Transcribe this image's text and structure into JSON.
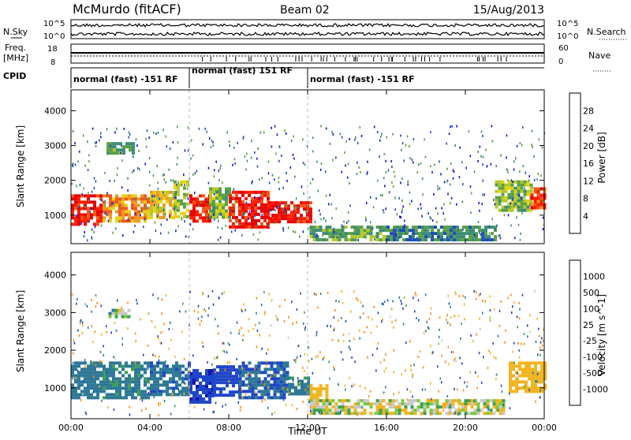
{
  "header": {
    "station": "McMurdo (fitACF)",
    "beam": "Beam 02",
    "date": "15/Aug/2013"
  },
  "status_panels": {
    "nsky_label": "N.Sky",
    "nsearch_label": "N.Search",
    "nsky_ticks": [
      "10^5",
      "10^0"
    ],
    "freq_label_1": "Freq.",
    "freq_label_2": "[MHz]",
    "freq_ticks": [
      "18",
      "8"
    ],
    "nave_label": "Nave",
    "nave_ticks": [
      "60",
      "0"
    ],
    "cpid_label": "CPID",
    "cpid_segments": [
      {
        "label": "normal (fast) -151 RF",
        "start_hour": 0,
        "end_hour": 6.0
      },
      {
        "label": "normal (fast) 151 RF",
        "start_hour": 6.0,
        "end_hour": 12.0
      },
      {
        "label": "normal (fast) -151 RF",
        "start_hour": 12.0,
        "end_hour": 24.0
      }
    ]
  },
  "colors": {
    "power_scale": [
      "#1414e6",
      "#1e50b4",
      "#3c8c78",
      "#5aa046",
      "#b4c828",
      "#e6d214",
      "#f09628",
      "#f05a14",
      "#ff1e00",
      "#e60000"
    ],
    "velocity_scale": [
      "#ff0000",
      "#ff5a00",
      "#ff8c14",
      "#f0b41e",
      "#c8c8c8",
      "#78c83c",
      "#3ca050",
      "#2d7896",
      "#1e46c8",
      "#1414b4"
    ]
  },
  "chart_data": [
    {
      "type": "heatmap",
      "name": "power-panel",
      "ylabel": "Slant Range [km]",
      "xlabel": "Time UT",
      "xlim": [
        0,
        24
      ],
      "ylim": [
        180,
        4600
      ],
      "x_ticks": [
        "00:00",
        "04:00",
        "08:00",
        "12:00",
        "16:00",
        "20:00",
        "00:00"
      ],
      "y_ticks": [
        1000,
        2000,
        3000,
        4000
      ],
      "colorbar": {
        "label": "Power [dB]",
        "ticks": [
          4,
          8,
          12,
          16,
          20,
          24,
          28
        ],
        "range": [
          0,
          30
        ]
      },
      "regions": [
        {
          "t": [
            0.0,
            1.6
          ],
          "r": [
            700,
            1600
          ],
          "v": 27
        },
        {
          "t": [
            1.6,
            4.0
          ],
          "r": [
            800,
            1600
          ],
          "v": 20
        },
        {
          "t": [
            4.0,
            5.2
          ],
          "r": [
            900,
            1700
          ],
          "v": 17
        },
        {
          "t": [
            5.2,
            6.0
          ],
          "r": [
            1000,
            2000
          ],
          "v": 14
        },
        {
          "t": [
            6.0,
            7.0
          ],
          "r": [
            800,
            1600
          ],
          "v": 27
        },
        {
          "t": [
            7.0,
            8.0
          ],
          "r": [
            900,
            1800
          ],
          "v": 12
        },
        {
          "t": [
            8.0,
            10.0
          ],
          "r": [
            650,
            1700
          ],
          "v": 27
        },
        {
          "t": [
            10.0,
            12.1
          ],
          "r": [
            800,
            1400
          ],
          "v": 27
        },
        {
          "t": [
            12.1,
            16.0
          ],
          "r": [
            300,
            700
          ],
          "v": 10
        },
        {
          "t": [
            16.0,
            21.5
          ],
          "r": [
            300,
            700
          ],
          "v": 8
        },
        {
          "t": [
            21.5,
            23.3
          ],
          "r": [
            1100,
            2000
          ],
          "v": 12
        },
        {
          "t": [
            23.3,
            24.0
          ],
          "r": [
            1200,
            1800
          ],
          "v": 24
        },
        {
          "t": [
            1.8,
            3.2
          ],
          "r": [
            2800,
            3100
          ],
          "v": 10
        }
      ]
    },
    {
      "type": "heatmap",
      "name": "velocity-panel",
      "ylabel": "Slant Range [km]",
      "xlabel": "Time UT",
      "xlim": [
        0,
        24
      ],
      "ylim": [
        180,
        4600
      ],
      "x_ticks": [
        "00:00",
        "04:00",
        "08:00",
        "12:00",
        "16:00",
        "20:00",
        "00:00"
      ],
      "y_ticks": [
        1000,
        2000,
        3000,
        4000
      ],
      "colorbar": {
        "label": "Velocity [m s^-1]",
        "ticks": [
          "1000",
          "500",
          "100",
          "25",
          "-25",
          "-100",
          "-500",
          "-1000"
        ]
      },
      "regions": [
        {
          "t": [
            0.0,
            1.6
          ],
          "r": [
            700,
            1700
          ],
          "v": 300
        },
        {
          "t": [
            1.6,
            4.0
          ],
          "r": [
            700,
            1700
          ],
          "v": 200
        },
        {
          "t": [
            4.0,
            6.0
          ],
          "r": [
            800,
            1700
          ],
          "v": 400
        },
        {
          "t": [
            6.0,
            7.2
          ],
          "r": [
            600,
            1500
          ],
          "v": 900
        },
        {
          "t": [
            7.2,
            8.5
          ],
          "r": [
            800,
            1600
          ],
          "v": 800
        },
        {
          "t": [
            8.5,
            11.0
          ],
          "r": [
            700,
            1700
          ],
          "v": 500
        },
        {
          "t": [
            11.0,
            12.1
          ],
          "r": [
            800,
            1300
          ],
          "v": 200
        },
        {
          "t": [
            12.1,
            13.0
          ],
          "r": [
            700,
            1100
          ],
          "v": -300
        },
        {
          "t": [
            12.1,
            22.0
          ],
          "r": [
            300,
            700
          ],
          "v": -50
        },
        {
          "t": [
            22.2,
            24.0
          ],
          "r": [
            900,
            1700
          ],
          "v": -300
        },
        {
          "t": [
            1.9,
            3.0
          ],
          "r": [
            2900,
            3100
          ],
          "v": 10
        }
      ]
    }
  ]
}
